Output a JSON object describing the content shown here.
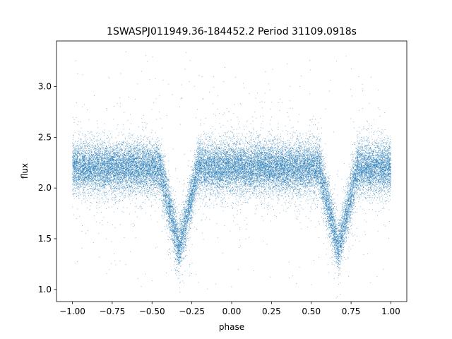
{
  "chart_data": {
    "type": "scatter",
    "title": "1SWASPJ011949.36-184452.2 Period 31109.0918s",
    "xlabel": "phase",
    "ylabel": "flux",
    "xlim": [
      -1.1,
      1.1
    ],
    "ylim": [
      0.88,
      3.45
    ],
    "x_ticks": [
      -1.0,
      -0.75,
      -0.5,
      -0.25,
      0.0,
      0.25,
      0.5,
      0.75,
      1.0
    ],
    "x_tick_labels": [
      "−1.00",
      "−0.75",
      "−0.50",
      "−0.25",
      "0.00",
      "0.25",
      "0.50",
      "0.75",
      "1.00"
    ],
    "y_ticks": [
      1.0,
      1.5,
      2.0,
      2.5,
      3.0
    ],
    "y_tick_labels": [
      "1.0",
      "1.5",
      "2.0",
      "2.5",
      "3.0"
    ],
    "grid": false,
    "legend": "none",
    "series_color": "#1f77b4",
    "light_curve": {
      "phase_range": [
        -1.0,
        1.0
      ],
      "baseline_flux": 2.2,
      "baseline_scatter": 0.12,
      "eclipse_minima": [
        {
          "phase": -0.33,
          "flux": 1.4,
          "half_width": 0.12
        },
        {
          "phase": 0.67,
          "flux": 1.4,
          "half_width": 0.12
        }
      ],
      "outlier_range": [
        1.0,
        3.35
      ],
      "approx_points": 30000
    }
  }
}
